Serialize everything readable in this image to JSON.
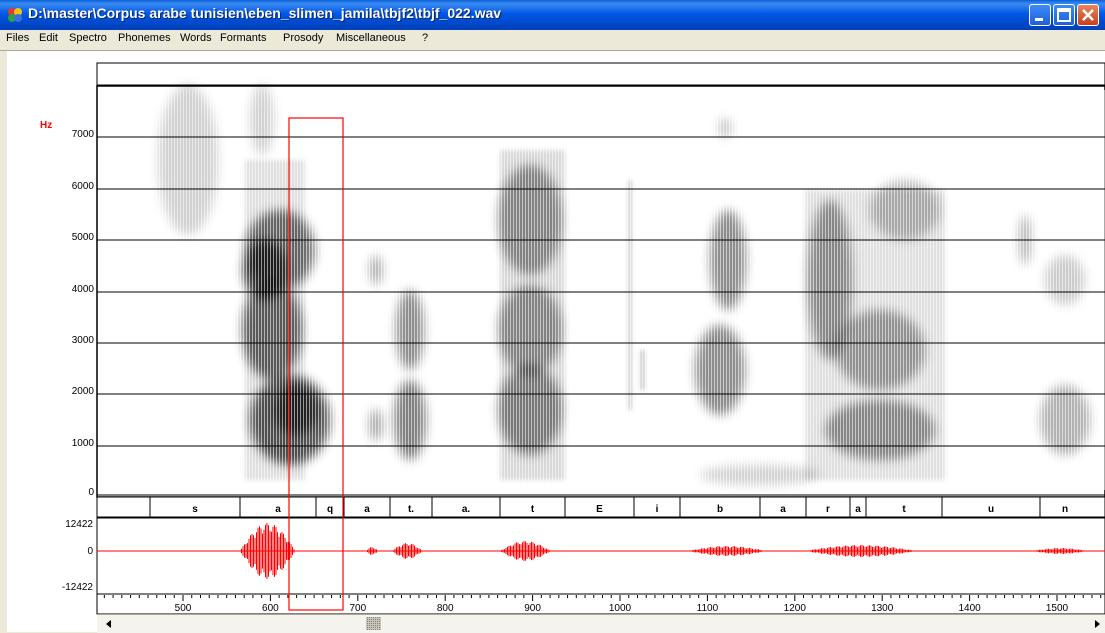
{
  "window": {
    "title": "D:\\master\\Corpus arabe tunisien\\eben_slimen_jamila\\tbjf2\\tbjf_022.wav"
  },
  "menu": [
    "Files",
    "Edit",
    "Spectro",
    "Phonemes",
    "Words",
    "Formants",
    "Prosody",
    "Miscellaneous",
    "?"
  ],
  "spectrogram": {
    "unit_label": "Hz",
    "freq_ticks": [
      "7000",
      "6000",
      "5000",
      "4000",
      "3000",
      "2000",
      "1000",
      "0"
    ]
  },
  "phonemes": [
    "s",
    "a",
    "q",
    "a",
    "t.",
    "a.",
    "t",
    "E",
    "i",
    "b",
    "a",
    "r",
    "a",
    "t",
    "u",
    "n"
  ],
  "waveform": {
    "y_ticks": [
      "12422",
      "0",
      "-12422"
    ]
  },
  "time_axis": {
    "ticks": [
      "500",
      "600",
      "700",
      "800",
      "900",
      "1000",
      "1100",
      "1200",
      "1300",
      "1400",
      "1500"
    ]
  },
  "colors": {
    "accent": "#FF0000",
    "titlebar": "#0058E6",
    "grid": "#000000"
  },
  "icons": {
    "app": "app-icon",
    "minimize": "minimize-icon",
    "maximize": "maximize-icon",
    "close": "close-icon",
    "scroll_left": "arrow-left-icon",
    "scroll_right": "arrow-right-icon"
  }
}
